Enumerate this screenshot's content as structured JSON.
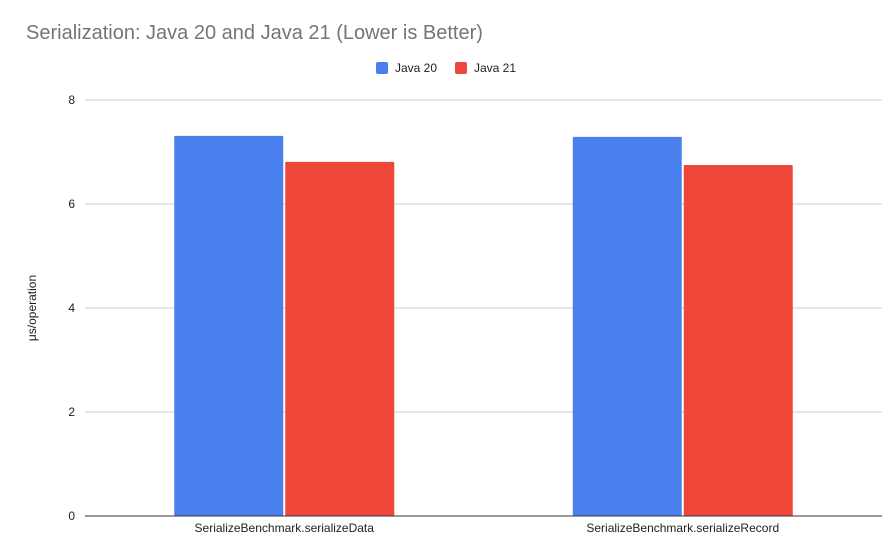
{
  "chart_data": {
    "type": "bar",
    "title": "Serialization: Java 20 and Java 21 (Lower is Better)",
    "xlabel": "",
    "ylabel": "μs/operation",
    "ylim": [
      0,
      8
    ],
    "yticks": [
      "0",
      "2",
      "4",
      "6",
      "8"
    ],
    "grid": true,
    "legend_position": "top-center",
    "categories": [
      "SerializeBenchmark.serializeData",
      "SerializeBenchmark.serializeRecord"
    ],
    "series": [
      {
        "name": "Java 20",
        "color": "#4a80ee",
        "values": [
          7.31,
          7.29
        ]
      },
      {
        "name": "Java 21",
        "color": "#ee473a",
        "values": [
          6.81,
          6.75
        ]
      }
    ]
  }
}
